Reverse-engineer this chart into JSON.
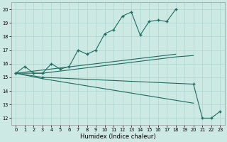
{
  "xlabel": "Humidex (Indice chaleur)",
  "xlim": [
    -0.5,
    23.5
  ],
  "ylim": [
    11.5,
    20.5
  ],
  "yticks": [
    12,
    13,
    14,
    15,
    16,
    17,
    18,
    19,
    20
  ],
  "xticks": [
    0,
    1,
    2,
    3,
    4,
    5,
    6,
    7,
    8,
    9,
    10,
    11,
    12,
    13,
    14,
    15,
    16,
    17,
    18,
    19,
    20,
    21,
    22,
    23
  ],
  "bg_color": "#cce9e4",
  "line_color": "#1e6b5e",
  "grid_color": "#add6cf",
  "line1_x": [
    0,
    1,
    2,
    3,
    4,
    5,
    6,
    7,
    8,
    9,
    10,
    11,
    12,
    13,
    14,
    15,
    16,
    17,
    18
  ],
  "line1_y": [
    15.3,
    15.8,
    15.3,
    15.3,
    16.0,
    15.6,
    15.8,
    17.0,
    16.7,
    17.0,
    18.2,
    18.5,
    19.5,
    19.8,
    18.1,
    19.1,
    19.2,
    19.1,
    20.0
  ],
  "line2_x": [
    0,
    18
  ],
  "line2_y": [
    15.3,
    16.7
  ],
  "line3_x": [
    0,
    3,
    18,
    20
  ],
  "line3_y": [
    15.3,
    15.3,
    16.5,
    16.6
  ],
  "line4_x": [
    0,
    3,
    20,
    21,
    22,
    23
  ],
  "line4_y": [
    15.3,
    15.0,
    14.5,
    12.0,
    12.0,
    12.5
  ],
  "line5_x": [
    0,
    3,
    20
  ],
  "line5_y": [
    15.3,
    14.9,
    13.1
  ]
}
